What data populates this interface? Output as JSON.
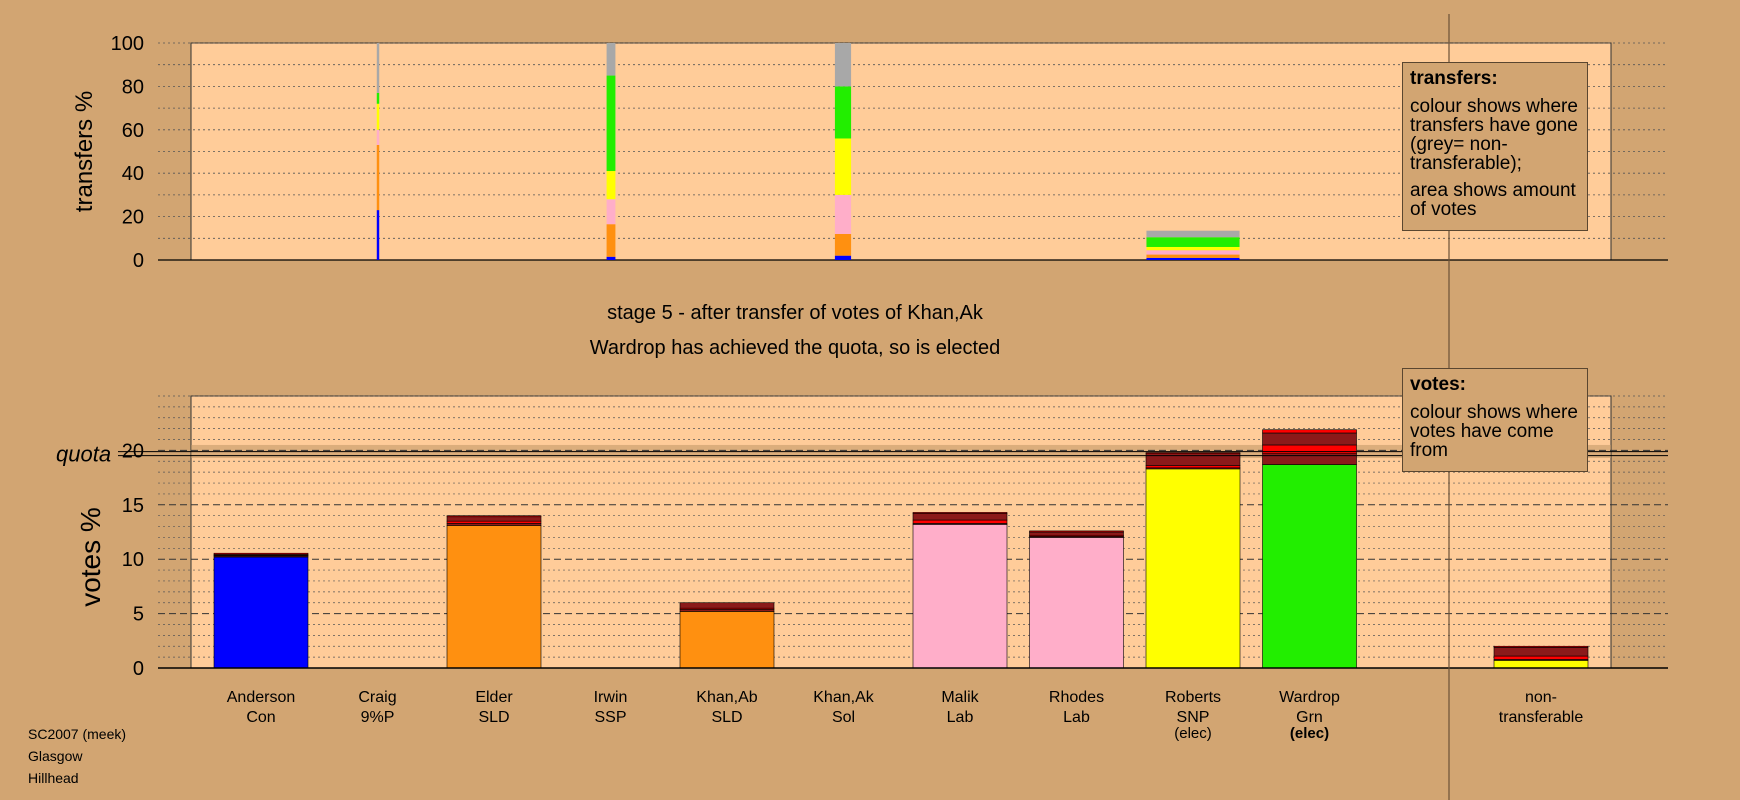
{
  "colors": {
    "background": "#d2a572",
    "panel": "#ffcc99",
    "shade": "#c09564",
    "Anderson": "#0000ff",
    "Craig": "#7a4a1a",
    "Elder": "#ff9010",
    "Irwin": "#e00000",
    "Khan,Ab": "#ff9010",
    "Khan,Ak": "#7a1010",
    "Malik": "#ffaec9",
    "Rhodes": "#ffaec9",
    "Roberts": "#ffff00",
    "Wardrop": "#22ee00",
    "nontransferable": "#a8a8a8",
    "transfer_red": "#ff0000",
    "transfer_dark": "#8b1a1a"
  },
  "header": {
    "title": "stage 5 - after transfer of votes of Khan,Ak",
    "subtitle": "Wardrop has achieved the quota, so is elected"
  },
  "legend_transfers": {
    "title": "transfers:",
    "para1": "colour shows where transfers have gone (grey= non-transferable);",
    "para2": "area shows amount of votes"
  },
  "legend_votes": {
    "title": "votes:",
    "para1": "colour shows where votes have come from"
  },
  "footer": {
    "line1": "SC2007 (meek)",
    "line2": "Glasgow",
    "line3": "Hillhead"
  },
  "chart_data": [
    {
      "type": "bar",
      "name": "transfers",
      "ylabel": "transfers %",
      "ylim": [
        0,
        100
      ],
      "yticks": [
        0,
        20,
        40,
        60,
        80,
        100
      ],
      "grid": "dotted",
      "legend_placement": "top-right",
      "bars": [
        {
          "from": "Craig",
          "stages_ago": 4,
          "relative_width": 0.05,
          "segments": [
            {
              "to": "Anderson",
              "value": 23
            },
            {
              "to": "Elder",
              "value": 30
            },
            {
              "to": "Malik",
              "value": 7
            },
            {
              "to": "Roberts",
              "value": 12
            },
            {
              "to": "Wardrop",
              "value": 5
            },
            {
              "to": "non-transferable",
              "value": 23
            }
          ]
        },
        {
          "from": "Irwin",
          "stages_ago": 3,
          "relative_width": 0.18,
          "segments": [
            {
              "to": "Anderson",
              "value": 1.5
            },
            {
              "to": "Elder",
              "value": 15
            },
            {
              "to": "Malik",
              "value": 11.5
            },
            {
              "to": "Roberts",
              "value": 13
            },
            {
              "to": "Wardrop",
              "value": 44
            },
            {
              "to": "non-transferable",
              "value": 15
            }
          ]
        },
        {
          "from": "Khan,Ak",
          "stages_ago": 2,
          "relative_width": 0.33,
          "segments": [
            {
              "to": "Anderson",
              "value": 2
            },
            {
              "to": "Elder",
              "value": 10
            },
            {
              "to": "Malik",
              "value": 18
            },
            {
              "to": "Roberts",
              "value": 26
            },
            {
              "to": "Wardrop",
              "value": 24
            },
            {
              "to": "non-transferable",
              "value": 20
            }
          ]
        },
        {
          "from": "Khan,Ab",
          "stages_ago": 1,
          "relative_width": 1.9,
          "segments": [
            {
              "to": "Anderson",
              "value": 1
            },
            {
              "to": "Elder",
              "value": 1.5
            },
            {
              "to": "Malik",
              "value": 2
            },
            {
              "to": "Roberts",
              "value": 1.5
            },
            {
              "to": "Wardrop",
              "value": 4.5
            },
            {
              "to": "non-transferable",
              "value": 3
            }
          ]
        }
      ]
    },
    {
      "type": "bar",
      "name": "votes",
      "ylabel": "votes %",
      "ylim": [
        0,
        25
      ],
      "yticks": [
        0,
        5,
        10,
        15,
        20
      ],
      "quota_label": "quota",
      "quota": 19.7,
      "grid": "dashed",
      "legend_placement": "top-right",
      "categories": [
        {
          "name": "Anderson",
          "party": "Con",
          "status": "",
          "segments": [
            {
              "from": "first",
              "value": 10.2
            },
            {
              "from": "Craig",
              "value": 0.1
            },
            {
              "from": "Irwin",
              "value": 0.05
            },
            {
              "from": "Khan,Ak",
              "value": 0.1
            },
            {
              "from": "Khan,Ab",
              "value": 0.1
            }
          ]
        },
        {
          "name": "Craig",
          "party": "9%P",
          "status": "",
          "segments": []
        },
        {
          "name": "Elder",
          "party": "SLD",
          "status": "",
          "segments": [
            {
              "from": "first",
              "value": 13.1
            },
            {
              "from": "Craig",
              "value": 0.2
            },
            {
              "from": "Irwin",
              "value": 0.2
            },
            {
              "from": "Khan,Ak",
              "value": 0.4
            },
            {
              "from": "Khan,Ab",
              "value": 0.1
            }
          ]
        },
        {
          "name": "Irwin",
          "party": "SSP",
          "status": "",
          "segments": []
        },
        {
          "name": "Khan,Ab",
          "party": "SLD",
          "status": "",
          "segments": [
            {
              "from": "first",
              "value": 5.2
            },
            {
              "from": "Craig",
              "value": 0.2
            },
            {
              "from": "Irwin",
              "value": 0.1
            },
            {
              "from": "Khan,Ak",
              "value": 0.5
            }
          ]
        },
        {
          "name": "Khan,Ak",
          "party": "Sol",
          "status": "",
          "segments": []
        },
        {
          "name": "Malik",
          "party": "Lab",
          "status": "",
          "segments": [
            {
              "from": "first",
              "value": 13.2
            },
            {
              "from": "Craig",
              "value": 0.1
            },
            {
              "from": "Irwin",
              "value": 0.3
            },
            {
              "from": "Khan,Ak",
              "value": 0.6
            },
            {
              "from": "Khan,Ab",
              "value": 0.1
            }
          ]
        },
        {
          "name": "Rhodes",
          "party": "Lab",
          "status": "",
          "segments": [
            {
              "from": "first",
              "value": 12.0
            },
            {
              "from": "Craig",
              "value": 0.1
            },
            {
              "from": "Irwin",
              "value": 0.1
            },
            {
              "from": "Khan,Ak",
              "value": 0.3
            },
            {
              "from": "Khan,Ab",
              "value": 0.1
            }
          ]
        },
        {
          "name": "Roberts",
          "party": "SNP",
          "status": "(elec)",
          "segments": [
            {
              "from": "first",
              "value": 18.3
            },
            {
              "from": "Craig",
              "value": 0.1
            },
            {
              "from": "Irwin",
              "value": 0.2
            },
            {
              "from": "Khan,Ak",
              "value": 1.1
            },
            {
              "from": "Khan,Ab",
              "value": 0.1
            }
          ]
        },
        {
          "name": "Wardrop",
          "party": "Grn",
          "status": "(elec)",
          "segments": [
            {
              "from": "first",
              "value": 18.7
            },
            {
              "from": "Craig",
              "value": 1.0
            },
            {
              "from": "Irwin",
              "value": 0.8
            },
            {
              "from": "Khan,Ak",
              "value": 1.1
            },
            {
              "from": "Khan,Ab",
              "value": 0.3
            }
          ]
        },
        {
          "name": "non-transferable",
          "party": "",
          "status": "",
          "segments": [
            {
              "from": "first",
              "value": 0.7
            },
            {
              "from": "Craig",
              "value": 0.1
            },
            {
              "from": "Irwin",
              "value": 0.3
            },
            {
              "from": "Khan,Ak",
              "value": 0.8
            },
            {
              "from": "Khan,Ab",
              "value": 0.1
            }
          ]
        }
      ]
    }
  ]
}
